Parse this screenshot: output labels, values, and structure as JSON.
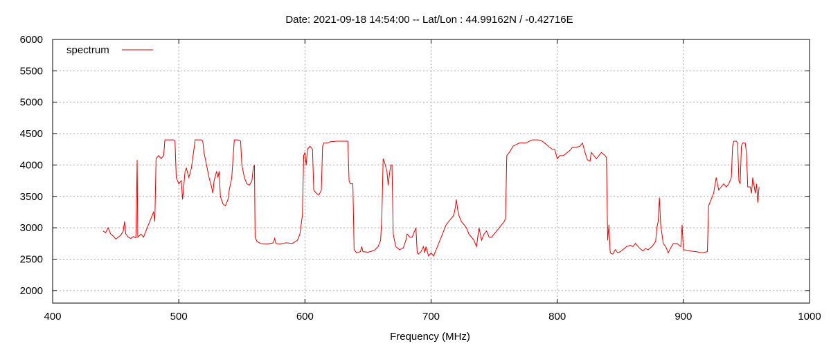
{
  "chart_data": {
    "type": "line",
    "title": "Date: 2021-09-18 14:54:00  --  Lat/Lon : 44.99162N / -0.42716E",
    "xlabel": "Frequency (MHz)",
    "ylabel": "",
    "xlim": [
      400,
      1000
    ],
    "ylim": [
      1800,
      6000
    ],
    "x_ticks": [
      400,
      500,
      600,
      700,
      800,
      900,
      1000
    ],
    "y_ticks": [
      2000,
      2500,
      3000,
      3500,
      4000,
      4500,
      5000,
      5500,
      6000
    ],
    "grid": true,
    "legend": "top-left",
    "color": "#e00000",
    "series": [
      {
        "name": "spectrum",
        "points": [
          [
            440,
            2950
          ],
          [
            442,
            2920
          ],
          [
            444,
            3000
          ],
          [
            446,
            2900
          ],
          [
            448,
            2870
          ],
          [
            450,
            2820
          ],
          [
            452,
            2850
          ],
          [
            454,
            2880
          ],
          [
            456,
            2950
          ],
          [
            457,
            3100
          ],
          [
            458,
            2900
          ],
          [
            460,
            2850
          ],
          [
            462,
            2830
          ],
          [
            464,
            2860
          ],
          [
            466,
            2840
          ],
          [
            467,
            4080
          ],
          [
            467.5,
            2850
          ],
          [
            470,
            2900
          ],
          [
            472,
            2850
          ],
          [
            474,
            2950
          ],
          [
            476,
            3050
          ],
          [
            478,
            3150
          ],
          [
            480,
            3250
          ],
          [
            481,
            3100
          ],
          [
            482,
            4100
          ],
          [
            484,
            4150
          ],
          [
            486,
            4100
          ],
          [
            488,
            4150
          ],
          [
            489,
            4400
          ],
          [
            492,
            4400
          ],
          [
            494,
            4400
          ],
          [
            496,
            4400
          ],
          [
            497,
            4380
          ],
          [
            498,
            3800
          ],
          [
            500,
            3700
          ],
          [
            502,
            3750
          ],
          [
            503,
            3450
          ],
          [
            505,
            3900
          ],
          [
            506,
            3950
          ],
          [
            508,
            3800
          ],
          [
            510,
            3950
          ],
          [
            511,
            4100
          ],
          [
            512,
            4250
          ],
          [
            513,
            4400
          ],
          [
            516,
            4400
          ],
          [
            518,
            4400
          ],
          [
            519,
            4380
          ],
          [
            520,
            4200
          ],
          [
            522,
            4000
          ],
          [
            524,
            3800
          ],
          [
            526,
            3650
          ],
          [
            527,
            3550
          ],
          [
            528,
            3750
          ],
          [
            530,
            3900
          ],
          [
            531,
            3800
          ],
          [
            532,
            3900
          ],
          [
            533,
            3500
          ],
          [
            535,
            3380
          ],
          [
            537,
            3350
          ],
          [
            539,
            3450
          ],
          [
            540,
            3600
          ],
          [
            542,
            3800
          ],
          [
            543,
            4100
          ],
          [
            544,
            4400
          ],
          [
            547,
            4400
          ],
          [
            549,
            4380
          ],
          [
            550,
            4000
          ],
          [
            552,
            3800
          ],
          [
            554,
            3700
          ],
          [
            556,
            3680
          ],
          [
            558,
            3750
          ],
          [
            559,
            3950
          ],
          [
            560,
            4000
          ],
          [
            560.5,
            2850
          ],
          [
            562,
            2780
          ],
          [
            565,
            2750
          ],
          [
            570,
            2740
          ],
          [
            575,
            2760
          ],
          [
            576,
            2830
          ],
          [
            577,
            2750
          ],
          [
            580,
            2740
          ],
          [
            585,
            2760
          ],
          [
            590,
            2750
          ],
          [
            594,
            2800
          ],
          [
            596,
            2900
          ],
          [
            598,
            3200
          ],
          [
            599,
            4150
          ],
          [
            600,
            4200
          ],
          [
            601,
            4000
          ],
          [
            602,
            4250
          ],
          [
            604,
            4300
          ],
          [
            606,
            4250
          ],
          [
            607,
            3600
          ],
          [
            609,
            3550
          ],
          [
            611,
            3520
          ],
          [
            613,
            3600
          ],
          [
            614,
            4300
          ],
          [
            615,
            4350
          ],
          [
            618,
            4350
          ],
          [
            620,
            4370
          ],
          [
            625,
            4380
          ],
          [
            630,
            4380
          ],
          [
            634,
            4380
          ],
          [
            635,
            3750
          ],
          [
            636,
            3700
          ],
          [
            638,
            3700
          ],
          [
            639,
            2650
          ],
          [
            641,
            2600
          ],
          [
            644,
            2620
          ],
          [
            645,
            2700
          ],
          [
            646,
            2620
          ],
          [
            650,
            2610
          ],
          [
            655,
            2640
          ],
          [
            658,
            2700
          ],
          [
            660,
            2800
          ],
          [
            661,
            3200
          ],
          [
            662,
            4100
          ],
          [
            663,
            4050
          ],
          [
            665,
            3900
          ],
          [
            666,
            3680
          ],
          [
            667,
            3850
          ],
          [
            668,
            4000
          ],
          [
            669,
            4000
          ],
          [
            670,
            2900
          ],
          [
            672,
            2700
          ],
          [
            675,
            2650
          ],
          [
            678,
            2680
          ],
          [
            680,
            2800
          ],
          [
            681,
            2900
          ],
          [
            683,
            2850
          ],
          [
            685,
            2850
          ],
          [
            687,
            2950
          ],
          [
            688,
            3000
          ],
          [
            689,
            2600
          ],
          [
            690,
            2580
          ],
          [
            692,
            2620
          ],
          [
            694,
            2700
          ],
          [
            695,
            2600
          ],
          [
            696,
            2700
          ],
          [
            698,
            2550
          ],
          [
            700,
            2600
          ],
          [
            702,
            2550
          ],
          [
            704,
            2650
          ],
          [
            706,
            2750
          ],
          [
            708,
            2850
          ],
          [
            710,
            2950
          ],
          [
            712,
            3050
          ],
          [
            714,
            3100
          ],
          [
            716,
            3150
          ],
          [
            718,
            3200
          ],
          [
            719,
            3300
          ],
          [
            720,
            3450
          ],
          [
            721,
            3300
          ],
          [
            722,
            3200
          ],
          [
            724,
            3100
          ],
          [
            726,
            3050
          ],
          [
            728,
            3000
          ],
          [
            730,
            2900
          ],
          [
            732,
            2850
          ],
          [
            734,
            2800
          ],
          [
            736,
            2700
          ],
          [
            737,
            2850
          ],
          [
            738,
            3000
          ],
          [
            740,
            2800
          ],
          [
            742,
            2900
          ],
          [
            744,
            2950
          ],
          [
            746,
            2850
          ],
          [
            748,
            2850
          ],
          [
            750,
            2900
          ],
          [
            752,
            2950
          ],
          [
            754,
            3000
          ],
          [
            756,
            3050
          ],
          [
            758,
            3100
          ],
          [
            759,
            3150
          ],
          [
            760,
            4150
          ],
          [
            762,
            4200
          ],
          [
            765,
            4300
          ],
          [
            770,
            4350
          ],
          [
            775,
            4350
          ],
          [
            780,
            4400
          ],
          [
            785,
            4400
          ],
          [
            788,
            4380
          ],
          [
            790,
            4350
          ],
          [
            793,
            4300
          ],
          [
            796,
            4250
          ],
          [
            798,
            4250
          ],
          [
            800,
            4100
          ],
          [
            802,
            4150
          ],
          [
            805,
            4150
          ],
          [
            808,
            4200
          ],
          [
            810,
            4230
          ],
          [
            812,
            4280
          ],
          [
            815,
            4280
          ],
          [
            818,
            4300
          ],
          [
            820,
            4350
          ],
          [
            822,
            4200
          ],
          [
            824,
            4080
          ],
          [
            826,
            4060
          ],
          [
            827,
            4200
          ],
          [
            829,
            4150
          ],
          [
            831,
            4100
          ],
          [
            833,
            4150
          ],
          [
            835,
            4200
          ],
          [
            838,
            4150
          ],
          [
            839,
            4120
          ],
          [
            840,
            2800
          ],
          [
            841,
            3050
          ],
          [
            842,
            2600
          ],
          [
            844,
            2580
          ],
          [
            846,
            2650
          ],
          [
            848,
            2600
          ],
          [
            850,
            2620
          ],
          [
            852,
            2650
          ],
          [
            855,
            2700
          ],
          [
            858,
            2720
          ],
          [
            860,
            2700
          ],
          [
            862,
            2750
          ],
          [
            865,
            2680
          ],
          [
            868,
            2630
          ],
          [
            870,
            2670
          ],
          [
            872,
            2650
          ],
          [
            875,
            2700
          ],
          [
            878,
            2780
          ],
          [
            879,
            3000
          ],
          [
            880,
            3100
          ],
          [
            881,
            3480
          ],
          [
            882,
            3050
          ],
          [
            884,
            2750
          ],
          [
            886,
            2700
          ],
          [
            888,
            2600
          ],
          [
            890,
            2680
          ],
          [
            892,
            2750
          ],
          [
            895,
            2750
          ],
          [
            898,
            2700
          ],
          [
            899,
            3050
          ],
          [
            900,
            2650
          ],
          [
            903,
            2640
          ],
          [
            906,
            2630
          ],
          [
            910,
            2620
          ],
          [
            915,
            2600
          ],
          [
            919,
            2620
          ],
          [
            920,
            3350
          ],
          [
            922,
            3450
          ],
          [
            924,
            3550
          ],
          [
            926,
            3800
          ],
          [
            928,
            3600
          ],
          [
            930,
            3650
          ],
          [
            932,
            3700
          ],
          [
            934,
            3650
          ],
          [
            936,
            3700
          ],
          [
            938,
            3800
          ],
          [
            939,
            4300
          ],
          [
            940,
            4380
          ],
          [
            942,
            4380
          ],
          [
            943,
            4350
          ],
          [
            944,
            3750
          ],
          [
            945,
            3700
          ],
          [
            946,
            4300
          ],
          [
            947,
            4350
          ],
          [
            949,
            4350
          ],
          [
            950,
            4200
          ],
          [
            951,
            3650
          ],
          [
            953,
            3650
          ],
          [
            954,
            3550
          ],
          [
            955,
            3800
          ],
          [
            957,
            3550
          ],
          [
            958,
            3700
          ],
          [
            959,
            3400
          ],
          [
            960,
            3650
          ]
        ]
      }
    ]
  }
}
